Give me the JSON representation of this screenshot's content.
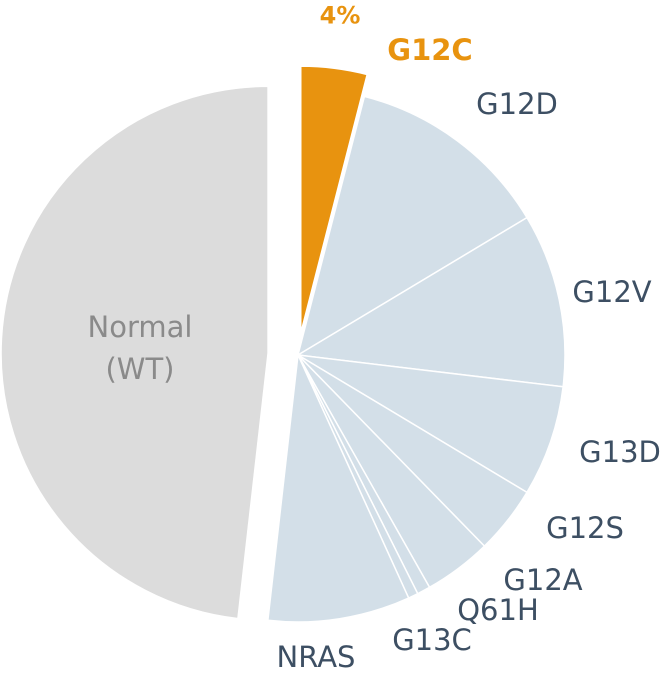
{
  "chart_data": {
    "type": "pie",
    "categories": [
      "G12C",
      "G12D",
      "G12V",
      "G13D",
      "G12S",
      "G12A",
      "Q61H",
      "G13C",
      "NRAS",
      "Normal (WT)"
    ],
    "values": [
      4,
      12.4,
      10.5,
      6.7,
      4.1,
      4.1,
      0.8,
      0.6,
      8.6,
      48.2
    ],
    "value_labels": [
      "4%",
      null,
      null,
      null,
      null,
      null,
      null,
      null,
      null,
      null
    ],
    "colors": [
      "#e8930f",
      "#d3dfe8",
      "#d3dfe8",
      "#d3dfe8",
      "#d3dfe8",
      "#d3dfe8",
      "#d3dfe8",
      "#d3dfe8",
      "#d3dfe8",
      "#dcdcdc"
    ]
  }
}
